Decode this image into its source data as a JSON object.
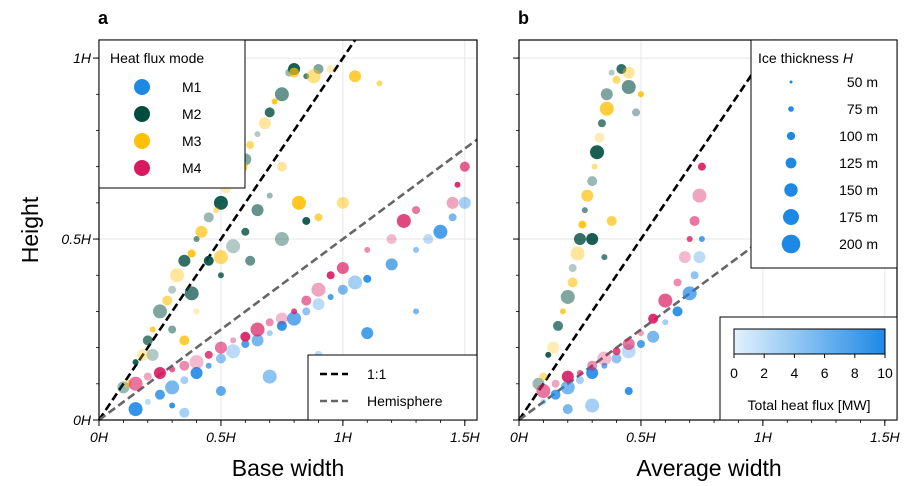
{
  "chart_data": [
    {
      "panel": "a",
      "type": "scatter",
      "xlabel": "Base width",
      "ylabel": "Height",
      "xlim": [
        0,
        1.55
      ],
      "ylim": [
        0,
        1.05
      ],
      "x_ticks": [
        {
          "v": 0,
          "label": "0H"
        },
        {
          "v": 0.5,
          "label": "0.5H"
        },
        {
          "v": 1,
          "label": "1H"
        },
        {
          "v": 1.5,
          "label": "1.5H"
        }
      ],
      "y_ticks": [
        {
          "v": 0,
          "label": "0H"
        },
        {
          "v": 0.5,
          "label": "0.5H"
        },
        {
          "v": 1,
          "label": "1H"
        }
      ],
      "grid": true,
      "legend": {
        "title": "Heat flux mode",
        "placement": "top-left",
        "entries": [
          "M1",
          "M2",
          "M3",
          "M4"
        ]
      },
      "line_legend": {
        "placement": "bottom-right",
        "entries": [
          "1:1",
          "Hemisphere"
        ]
      },
      "reference_lines": [
        {
          "name": "1:1",
          "style": "dashed",
          "color": "#000000",
          "slope": 1.0
        },
        {
          "name": "Hemisphere",
          "style": "dashed",
          "color": "#666666",
          "slope": 0.5
        }
      ],
      "series": [
        {
          "name": "M1",
          "color": "#1e88e5",
          "points": [
            [
              0.2,
              0.05
            ],
            [
              0.25,
              0.07
            ],
            [
              0.3,
              0.09
            ],
            [
              0.35,
              0.11
            ],
            [
              0.4,
              0.13
            ],
            [
              0.45,
              0.15
            ],
            [
              0.5,
              0.17
            ],
            [
              0.55,
              0.19
            ],
            [
              0.6,
              0.21
            ],
            [
              0.65,
              0.22
            ],
            [
              0.7,
              0.24
            ],
            [
              0.75,
              0.26
            ],
            [
              0.8,
              0.28
            ],
            [
              0.85,
              0.3
            ],
            [
              0.9,
              0.32
            ],
            [
              0.95,
              0.34
            ],
            [
              1.0,
              0.36
            ],
            [
              1.05,
              0.38
            ],
            [
              1.1,
              0.39
            ],
            [
              1.2,
              0.43
            ],
            [
              1.3,
              0.47
            ],
            [
              1.35,
              0.5
            ],
            [
              1.4,
              0.52
            ],
            [
              1.45,
              0.56
            ],
            [
              1.5,
              0.6
            ],
            [
              0.3,
              0.04
            ],
            [
              0.5,
              0.08
            ],
            [
              0.7,
              0.12
            ],
            [
              0.9,
              0.18
            ],
            [
              1.1,
              0.24
            ],
            [
              1.3,
              0.3
            ],
            [
              0.35,
              0.02
            ],
            [
              0.15,
              0.03
            ]
          ]
        },
        {
          "name": "M2",
          "color": "#004d40",
          "points": [
            [
              0.1,
              0.09
            ],
            [
              0.15,
              0.16
            ],
            [
              0.2,
              0.22
            ],
            [
              0.25,
              0.3
            ],
            [
              0.3,
              0.36
            ],
            [
              0.35,
              0.44
            ],
            [
              0.4,
              0.5
            ],
            [
              0.45,
              0.56
            ],
            [
              0.5,
              0.6
            ],
            [
              0.55,
              0.66
            ],
            [
              0.6,
              0.72
            ],
            [
              0.65,
              0.79
            ],
            [
              0.7,
              0.85
            ],
            [
              0.75,
              0.9
            ],
            [
              0.78,
              0.96
            ],
            [
              0.8,
              0.97
            ],
            [
              0.85,
              0.95
            ],
            [
              0.9,
              0.97
            ],
            [
              0.55,
              0.48
            ],
            [
              0.6,
              0.52
            ],
            [
              0.65,
              0.58
            ],
            [
              0.7,
              0.62
            ],
            [
              0.45,
              0.44
            ],
            [
              0.38,
              0.35
            ],
            [
              0.3,
              0.25
            ],
            [
              0.22,
              0.18
            ],
            [
              0.5,
              0.4
            ],
            [
              0.62,
              0.44
            ],
            [
              0.75,
              0.5
            ],
            [
              0.85,
              0.55
            ]
          ]
        },
        {
          "name": "M3",
          "color": "#ffc107",
          "points": [
            [
              0.12,
              0.1
            ],
            [
              0.18,
              0.18
            ],
            [
              0.22,
              0.25
            ],
            [
              0.28,
              0.33
            ],
            [
              0.32,
              0.4
            ],
            [
              0.38,
              0.46
            ],
            [
              0.42,
              0.52
            ],
            [
              0.48,
              0.58
            ],
            [
              0.52,
              0.64
            ],
            [
              0.58,
              0.7
            ],
            [
              0.62,
              0.76
            ],
            [
              0.68,
              0.82
            ],
            [
              0.72,
              0.88
            ],
            [
              0.8,
              0.96
            ],
            [
              0.88,
              0.95
            ],
            [
              0.95,
              0.97
            ],
            [
              1.05,
              0.95
            ],
            [
              1.15,
              0.93
            ],
            [
              0.75,
              0.7
            ],
            [
              0.82,
              0.6
            ],
            [
              0.9,
              0.56
            ],
            [
              1.0,
              0.6
            ],
            [
              0.4,
              0.3
            ],
            [
              0.35,
              0.22
            ],
            [
              0.5,
              0.45
            ]
          ]
        },
        {
          "name": "M4",
          "color": "#d81b60",
          "points": [
            [
              0.15,
              0.1
            ],
            [
              0.2,
              0.12
            ],
            [
              0.25,
              0.13
            ],
            [
              0.3,
              0.14
            ],
            [
              0.35,
              0.15
            ],
            [
              0.4,
              0.16
            ],
            [
              0.45,
              0.18
            ],
            [
              0.5,
              0.2
            ],
            [
              0.55,
              0.22
            ],
            [
              0.6,
              0.23
            ],
            [
              0.65,
              0.25
            ],
            [
              0.7,
              0.27
            ],
            [
              0.75,
              0.28
            ],
            [
              0.8,
              0.3
            ],
            [
              0.85,
              0.33
            ],
            [
              0.9,
              0.36
            ],
            [
              0.95,
              0.4
            ],
            [
              1.0,
              0.42
            ],
            [
              1.1,
              0.47
            ],
            [
              1.2,
              0.5
            ],
            [
              1.25,
              0.55
            ],
            [
              1.3,
              0.58
            ],
            [
              1.45,
              0.6
            ],
            [
              1.47,
              0.65
            ],
            [
              1.5,
              0.7
            ]
          ]
        }
      ]
    },
    {
      "panel": "b",
      "type": "scatter",
      "xlabel": "Average width",
      "ylabel": "",
      "xlim": [
        0,
        1.55
      ],
      "ylim": [
        0,
        1.05
      ],
      "x_ticks": [
        {
          "v": 0,
          "label": "0H"
        },
        {
          "v": 0.5,
          "label": "0.5H"
        },
        {
          "v": 1,
          "label": "1H"
        },
        {
          "v": 1.5,
          "label": "1.5H"
        }
      ],
      "y_ticks": [
        {
          "v": 0,
          "label": ""
        },
        {
          "v": 0.5,
          "label": ""
        },
        {
          "v": 1,
          "label": ""
        }
      ],
      "grid": true,
      "legend": {
        "title": "Ice thickness H",
        "placement": "top-right",
        "entries": [
          "50 m",
          "75 m",
          "100 m",
          "125 m",
          "150 m",
          "175 m",
          "200 m"
        ]
      },
      "colorbar": {
        "label": "Total heat flux [MW]",
        "ticks": [
          "0",
          "2",
          "4",
          "6",
          "8",
          "10"
        ],
        "range": [
          0,
          10
        ],
        "placement": "bottom-right"
      },
      "reference_lines": [
        {
          "name": "1:1",
          "style": "dashed",
          "color": "#000000",
          "slope": 1.0
        },
        {
          "name": "Hemisphere",
          "style": "dashed",
          "color": "#666666",
          "slope": 0.5
        }
      ],
      "series": [
        {
          "name": "M1",
          "color": "#1e88e5",
          "points": [
            [
              0.1,
              0.05
            ],
            [
              0.15,
              0.07
            ],
            [
              0.2,
              0.09
            ],
            [
              0.25,
              0.11
            ],
            [
              0.3,
              0.13
            ],
            [
              0.35,
              0.15
            ],
            [
              0.4,
              0.17
            ],
            [
              0.45,
              0.19
            ],
            [
              0.5,
              0.21
            ],
            [
              0.55,
              0.23
            ],
            [
              0.6,
              0.27
            ],
            [
              0.65,
              0.3
            ],
            [
              0.7,
              0.35
            ],
            [
              0.72,
              0.4
            ],
            [
              0.74,
              0.45
            ],
            [
              0.75,
              0.5
            ],
            [
              0.2,
              0.03
            ],
            [
              0.3,
              0.04
            ],
            [
              0.45,
              0.08
            ]
          ]
        },
        {
          "name": "M2",
          "color": "#004d40",
          "points": [
            [
              0.08,
              0.1
            ],
            [
              0.12,
              0.18
            ],
            [
              0.16,
              0.26
            ],
            [
              0.2,
              0.34
            ],
            [
              0.22,
              0.42
            ],
            [
              0.25,
              0.5
            ],
            [
              0.27,
              0.58
            ],
            [
              0.3,
              0.66
            ],
            [
              0.32,
              0.74
            ],
            [
              0.34,
              0.82
            ],
            [
              0.36,
              0.9
            ],
            [
              0.38,
              0.96
            ],
            [
              0.42,
              0.97
            ],
            [
              0.45,
              0.92
            ],
            [
              0.48,
              0.85
            ],
            [
              0.3,
              0.5
            ],
            [
              0.35,
              0.45
            ]
          ]
        },
        {
          "name": "M3",
          "color": "#ffc107",
          "points": [
            [
              0.1,
              0.12
            ],
            [
              0.14,
              0.2
            ],
            [
              0.18,
              0.3
            ],
            [
              0.22,
              0.38
            ],
            [
              0.24,
              0.46
            ],
            [
              0.26,
              0.54
            ],
            [
              0.28,
              0.62
            ],
            [
              0.31,
              0.7
            ],
            [
              0.33,
              0.78
            ],
            [
              0.36,
              0.86
            ],
            [
              0.4,
              0.94
            ],
            [
              0.45,
              0.96
            ],
            [
              0.5,
              0.9
            ],
            [
              0.38,
              0.55
            ]
          ]
        },
        {
          "name": "M4",
          "color": "#d81b60",
          "points": [
            [
              0.1,
              0.08
            ],
            [
              0.15,
              0.1
            ],
            [
              0.2,
              0.12
            ],
            [
              0.25,
              0.13
            ],
            [
              0.3,
              0.15
            ],
            [
              0.35,
              0.17
            ],
            [
              0.4,
              0.19
            ],
            [
              0.45,
              0.21
            ],
            [
              0.5,
              0.24
            ],
            [
              0.55,
              0.28
            ],
            [
              0.6,
              0.33
            ],
            [
              0.65,
              0.38
            ],
            [
              0.68,
              0.45
            ],
            [
              0.7,
              0.5
            ],
            [
              0.72,
              0.55
            ],
            [
              0.74,
              0.62
            ],
            [
              0.75,
              0.7
            ]
          ]
        }
      ]
    }
  ]
}
